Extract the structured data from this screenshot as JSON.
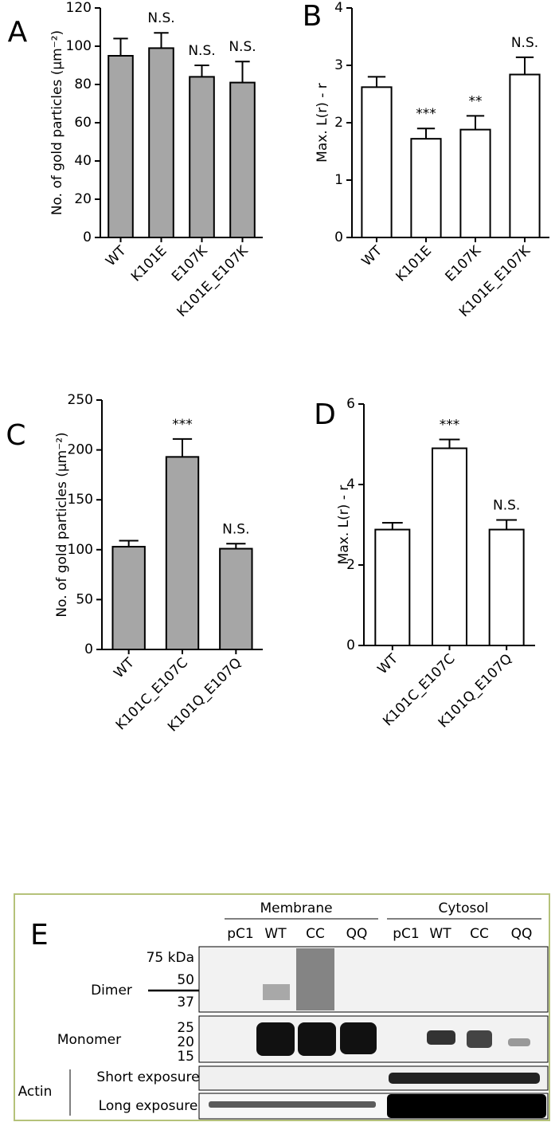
{
  "chart_data": [
    {
      "type": "bar",
      "panel": "A",
      "ylabel": "No. of gold particles (μm⁻²)",
      "categories": [
        "WT",
        "K101E",
        "E107K",
        "K101E_E107K"
      ],
      "values": [
        95,
        99,
        84,
        81
      ],
      "errors": [
        9,
        8,
        6,
        11
      ],
      "annotations": [
        null,
        "N.S.",
        "N.S.",
        "N.S."
      ],
      "color": "#a6a6a6",
      "ylim": [
        0,
        120
      ],
      "yticks": [
        0,
        20,
        40,
        60,
        80,
        100,
        120
      ]
    },
    {
      "type": "bar",
      "panel": "B",
      "ylabel": "Max. L(r) - r",
      "categories": [
        "WT",
        "K101E",
        "E107K",
        "K101E_E107K"
      ],
      "values": [
        2.62,
        1.72,
        1.88,
        2.84
      ],
      "errors": [
        0.18,
        0.18,
        0.24,
        0.3
      ],
      "annotations": [
        null,
        "***",
        "**",
        "N.S."
      ],
      "color": "#ffffff",
      "ylim": [
        0,
        4
      ],
      "yticks": [
        0,
        1,
        2,
        3,
        4
      ]
    },
    {
      "type": "bar",
      "panel": "C",
      "ylabel": "No. of gold particles (μm⁻²)",
      "categories": [
        "WT",
        "K101C_E107C",
        "K101Q_E107Q"
      ],
      "values": [
        103,
        193,
        101
      ],
      "errors": [
        6,
        18,
        5
      ],
      "annotations": [
        null,
        "***",
        "N.S."
      ],
      "color": "#a6a6a6",
      "ylim": [
        0,
        250
      ],
      "yticks": [
        0,
        50,
        100,
        150,
        200,
        250
      ]
    },
    {
      "type": "bar",
      "panel": "D",
      "ylabel": "Max. L(r) - r",
      "categories": [
        "WT",
        "K101C_E107C",
        "K101Q_E107Q"
      ],
      "values": [
        2.88,
        4.9,
        2.88
      ],
      "errors": [
        0.17,
        0.22,
        0.24
      ],
      "annotations": [
        null,
        "***",
        "N.S."
      ],
      "color": "#ffffff",
      "ylim": [
        0,
        6
      ],
      "yticks": [
        0,
        2,
        4,
        6
      ]
    }
  ],
  "blot": {
    "panel": "E",
    "groups": [
      "Membrane",
      "Cytosol"
    ],
    "lanes": [
      "pC1",
      "WT",
      "CC",
      "QQ",
      "pC1",
      "WT",
      "CC",
      "QQ"
    ],
    "markers": [
      "75 kDa",
      "50",
      "37",
      "25",
      "20",
      "15"
    ],
    "rows": [
      "Dimer",
      "Monomer",
      "Short exposure",
      "Long exposure"
    ],
    "actin": "Actin"
  }
}
